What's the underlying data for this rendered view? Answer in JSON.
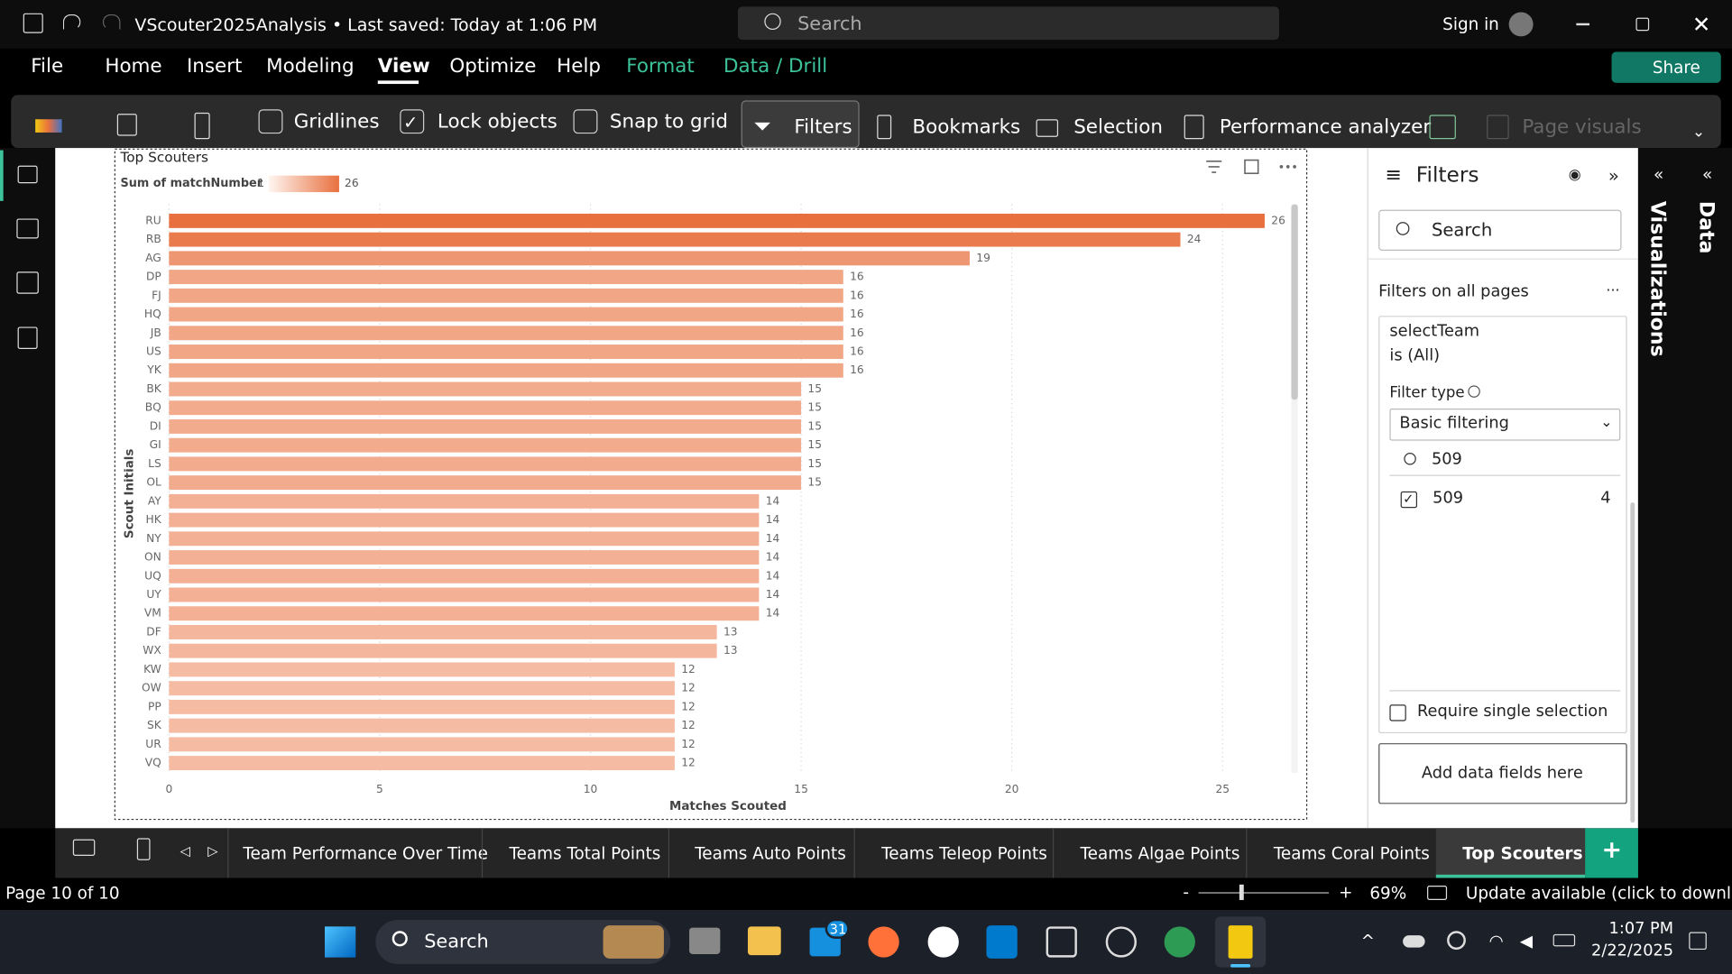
{
  "title_bar": {
    "document": "VScouter2025Analysis • Last saved: Today at 1:06 PM",
    "search": "Search",
    "sign_in": "Sign in"
  },
  "menu": [
    "File",
    "Home",
    "Insert",
    "Modeling",
    "View",
    "Optimize",
    "Help",
    "Format",
    "Data / Drill"
  ],
  "share": "Share",
  "ribbon": [
    "Gridlines",
    "Lock objects",
    "Snap to grid",
    "Filters",
    "Bookmarks",
    "Selection",
    "Performance analyzer",
    "Page visuals"
  ],
  "filters_pane": {
    "title": "Filters",
    "search": "Search",
    "section": "Filters on all pages",
    "field": "selectTeam",
    "condition": "is (All)",
    "filter_type_label": "Filter type",
    "filter_type": "Basic filtering",
    "search_value": "509",
    "item": "509",
    "item_count": "4",
    "single_selection": "Require single selection",
    "add_fields": "Add data fields here"
  },
  "side_panes": [
    "Visualizations",
    "Data"
  ],
  "page_tabs": [
    "Team Performance Over Time",
    "Teams Total Points",
    "Teams Auto Points",
    "Teams Teleop Points",
    "Teams Algae Points",
    "Teams Coral Points",
    "Top Scouters"
  ],
  "status_bar": {
    "page": "Page 10 of 10",
    "zoom": "69%",
    "update": "Update available (click to download)"
  },
  "taskbar": {
    "search": "Search",
    "badge": "31",
    "time": "1:07 PM",
    "date": "2/22/2025"
  },
  "chart_data": {
    "type": "bar",
    "orientation": "horizontal",
    "title": "Top Scouters",
    "x_label": "Matches Scouted",
    "y_label": "Scout Initials",
    "legend": {
      "title": "Sum of matchNumber",
      "min": 1,
      "max": 26
    },
    "color_min": "#fff6f1",
    "color_max": "#e8703f",
    "categories": [
      "RU",
      "RB",
      "AG",
      "DP",
      "FJ",
      "HQ",
      "JB",
      "US",
      "YK",
      "BK",
      "BQ",
      "DI",
      "GI",
      "LS",
      "OL",
      "AY",
      "HK",
      "NY",
      "ON",
      "UQ",
      "UY",
      "VM",
      "DF",
      "WX",
      "KW",
      "OW",
      "PP",
      "SK",
      "UR",
      "VQ"
    ],
    "values": [
      26,
      24,
      19,
      16,
      16,
      16,
      16,
      16,
      16,
      15,
      15,
      15,
      15,
      15,
      15,
      14,
      14,
      14,
      14,
      14,
      14,
      14,
      13,
      13,
      12,
      12,
      12,
      12,
      12,
      12
    ],
    "xlim": [
      0,
      26.5
    ],
    "xticks": [
      0,
      5,
      10,
      15,
      20,
      25
    ],
    "grid": true
  }
}
